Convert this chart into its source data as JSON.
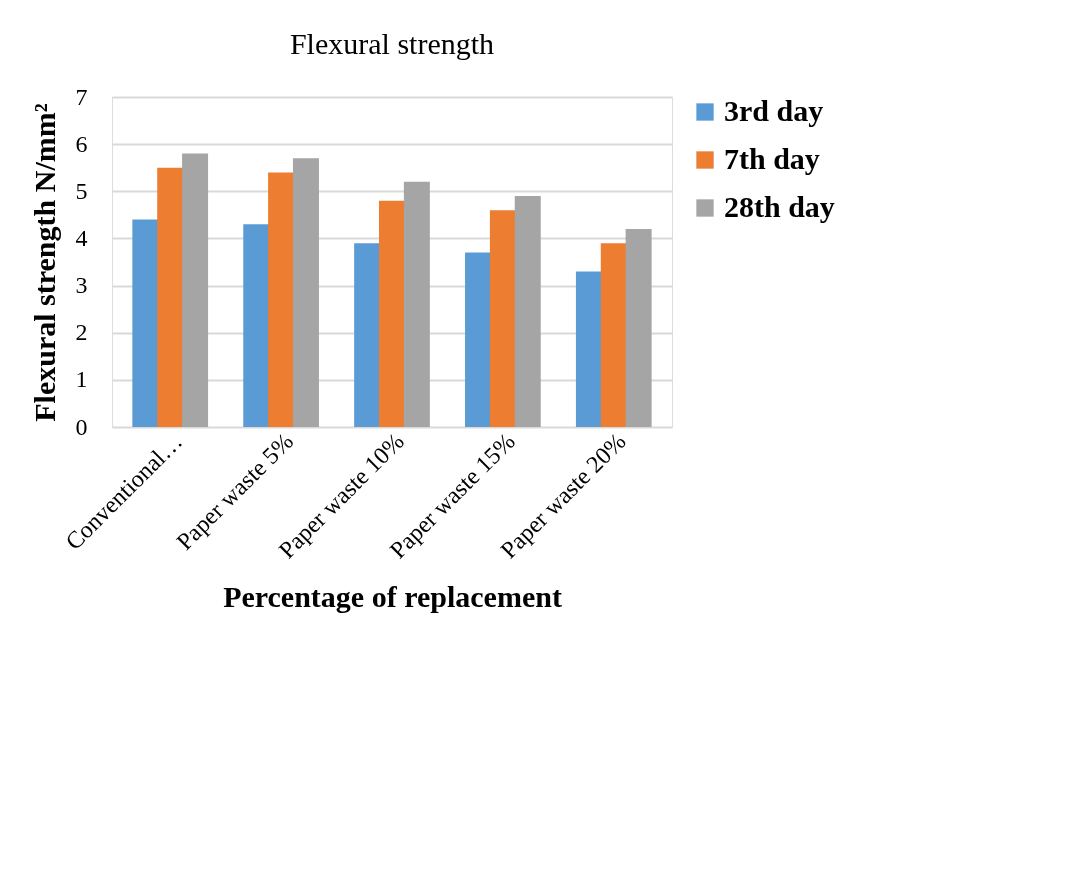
{
  "chart_data": {
    "type": "bar",
    "title": "Flexural strength",
    "xlabel": "Percentage of replacement",
    "ylabel": "Flexural strength N/mm²",
    "categories": [
      "Conventional…",
      "Paper waste 5%",
      "Paper waste 10%",
      "Paper waste 15%",
      "Paper waste 20%"
    ],
    "series": [
      {
        "name": "3rd day",
        "color": "#5b9bd5",
        "values": [
          4.4,
          4.3,
          3.9,
          3.7,
          3.3
        ]
      },
      {
        "name": "7th day",
        "color": "#ed7d31",
        "values": [
          5.5,
          5.4,
          4.8,
          4.6,
          3.9
        ]
      },
      {
        "name": "28th day",
        "color": "#a5a5a5",
        "values": [
          5.8,
          5.7,
          5.2,
          4.9,
          4.2
        ]
      }
    ],
    "ylim": [
      0,
      7
    ],
    "yticks": [
      0,
      1,
      2,
      3,
      4,
      5,
      6,
      7
    ],
    "grid": "y",
    "legend": "right"
  }
}
